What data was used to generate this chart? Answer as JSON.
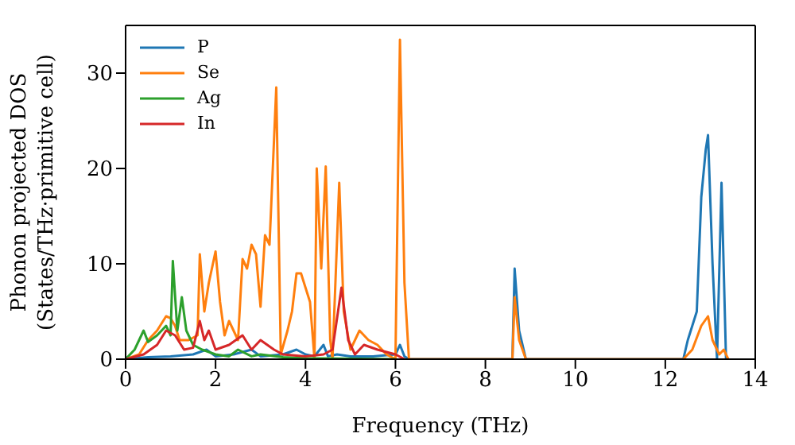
{
  "chart_data": {
    "type": "line",
    "xlabel": "Frequency (THz)",
    "ylabel": "Phonon projected DOS\n(States/THz·primitive cell)",
    "xlim": [
      0,
      14
    ],
    "xticks": [
      0,
      2,
      4,
      6,
      8,
      10,
      12,
      14
    ],
    "ylim": [
      0,
      35
    ],
    "yticks": [
      0,
      10,
      20,
      30
    ],
    "legend": "top left",
    "marker": "none",
    "line_style": "solid",
    "series": [
      {
        "name": "P",
        "color": "#1f77b4",
        "x": [
          0,
          0.5,
          1,
          1.5,
          1.8,
          2,
          2.4,
          2.8,
          3,
          3.5,
          3.8,
          4,
          4.2,
          4.4,
          4.5,
          4.7,
          5,
          5.5,
          6,
          6.1,
          6.2,
          6.3,
          8.6,
          8.65,
          8.75,
          8.9,
          12.4,
          12.5,
          12.7,
          12.8,
          12.9,
          12.95,
          13.05,
          13.15,
          13.25,
          13.35
        ],
        "values": [
          0,
          0.2,
          0.3,
          0.5,
          1,
          0.3,
          0.5,
          1,
          0.3,
          0.5,
          1,
          0.5,
          0.3,
          1.5,
          0.3,
          0.5,
          0.3,
          0.3,
          0.5,
          1.5,
          0.3,
          0,
          0,
          9.5,
          3,
          0,
          0,
          2,
          5,
          17,
          22,
          23.5,
          10,
          0,
          18.5,
          0
        ]
      },
      {
        "name": "Se",
        "color": "#ff7f0e",
        "x": [
          0,
          0.3,
          0.5,
          0.7,
          0.9,
          1,
          1.1,
          1.2,
          1.4,
          1.6,
          1.65,
          1.75,
          1.85,
          2,
          2.1,
          2.2,
          2.3,
          2.5,
          2.6,
          2.7,
          2.8,
          2.9,
          3,
          3.1,
          3.2,
          3.35,
          3.45,
          3.6,
          3.7,
          3.8,
          3.9,
          4,
          4.1,
          4.2,
          4.25,
          4.35,
          4.45,
          4.55,
          4.6,
          4.75,
          4.85,
          5,
          5.2,
          5.4,
          5.6,
          5.8,
          6,
          6.1,
          6.2,
          6.3,
          8.6,
          8.65,
          8.75,
          8.9,
          12.4,
          12.6,
          12.8,
          12.95,
          13.05,
          13.2,
          13.3,
          13.4
        ],
        "values": [
          0,
          0.5,
          2,
          3,
          4.5,
          4.3,
          3.5,
          2,
          2,
          2.5,
          11,
          5,
          8,
          11.3,
          6,
          2.5,
          4,
          2,
          10.5,
          9.5,
          12,
          11,
          5.5,
          13,
          12,
          28.5,
          0.5,
          3,
          5,
          9,
          9,
          7.5,
          6,
          0,
          20,
          9.5,
          20.2,
          2,
          0,
          18.5,
          5,
          1,
          3,
          2,
          1.5,
          0.5,
          0,
          33.5,
          8,
          0,
          0,
          6.5,
          2,
          0,
          0,
          1,
          3.5,
          4.5,
          2,
          0.5,
          1,
          0
        ]
      },
      {
        "name": "Ag",
        "color": "#2ca02c",
        "x": [
          0,
          0.2,
          0.4,
          0.5,
          0.7,
          0.9,
          1,
          1.05,
          1.15,
          1.25,
          1.35,
          1.5,
          1.7,
          2,
          2.3,
          2.5,
          2.8,
          3,
          3.5,
          4,
          6
        ],
        "values": [
          0,
          1,
          3,
          1.8,
          2.5,
          3.5,
          2.5,
          10.3,
          3,
          6.5,
          3,
          1.5,
          1,
          0.5,
          0.3,
          1,
          0.3,
          0.5,
          0.2,
          0.1,
          0
        ]
      },
      {
        "name": "In",
        "color": "#d62728",
        "x": [
          0,
          0.4,
          0.7,
          0.9,
          1.1,
          1.3,
          1.5,
          1.65,
          1.75,
          1.85,
          2,
          2.3,
          2.6,
          2.8,
          3,
          3.3,
          3.5,
          4,
          4.4,
          4.6,
          4.8,
          4.95,
          5.1,
          5.3,
          5.6,
          6,
          6.2
        ],
        "values": [
          0,
          0.5,
          1.5,
          3,
          2.5,
          1,
          1.2,
          4,
          2,
          3,
          1,
          1.5,
          2.5,
          1,
          2,
          1,
          0.5,
          0.3,
          0.5,
          1,
          7.5,
          2,
          0.5,
          1.5,
          1,
          0.5,
          0
        ]
      }
    ]
  }
}
